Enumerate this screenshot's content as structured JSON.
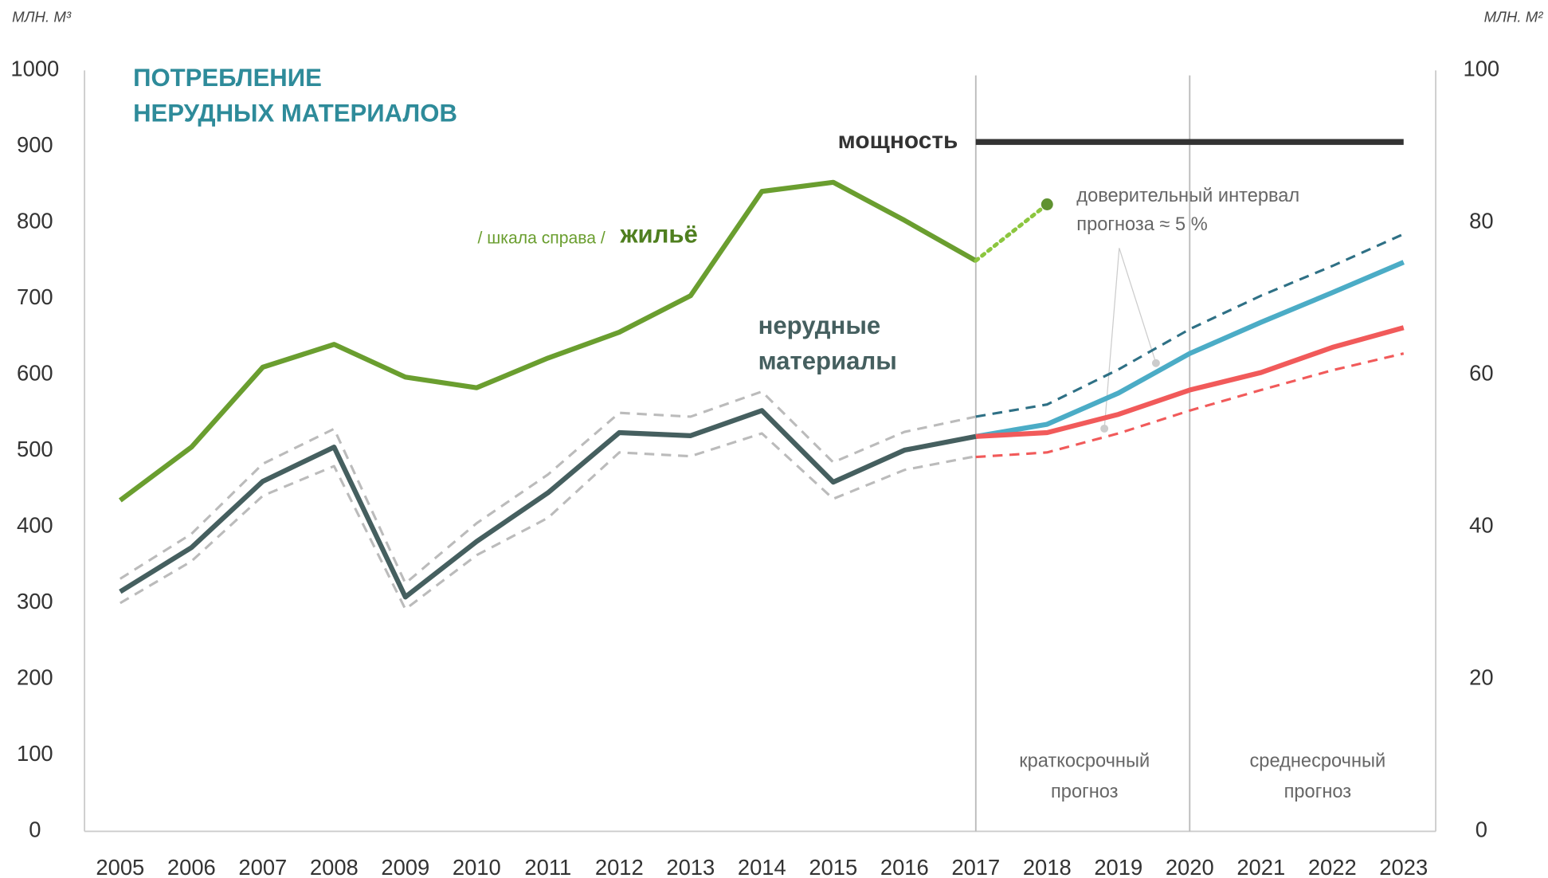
{
  "chart_data": {
    "type": "line",
    "title": [
      "ПОТРЕБЛЕНИЕ",
      "НЕРУДНЫХ МАТЕРИАЛОВ"
    ],
    "y_label": "МЛН. М³",
    "y2_label": "МЛН. М²",
    "x": [
      2005,
      2006,
      2007,
      2008,
      2009,
      2010,
      2011,
      2012,
      2013,
      2014,
      2015,
      2016,
      2017,
      2018,
      2019,
      2020,
      2021,
      2022,
      2023
    ],
    "xlim": [
      2004.5,
      2023.45
    ],
    "ylim": [
      0,
      1000
    ],
    "yticks": [
      0,
      100,
      200,
      300,
      400,
      500,
      600,
      700,
      800,
      900,
      1000
    ],
    "y2lim": [
      0,
      100
    ],
    "y2ticks": [
      0,
      20,
      40,
      60,
      80,
      100
    ],
    "vlines": [
      2017,
      2020
    ],
    "series": [
      {
        "color": "#bbbbbb",
        "style": "dashed",
        "values": [
          332,
          391,
          483,
          529,
          326,
          405,
          469,
          550,
          545,
          578,
          485,
          525,
          545,
          null,
          null,
          null,
          null,
          null,
          null
        ]
      },
      {
        "color": "#bbbbbb",
        "style": "dashed",
        "values": [
          300,
          355,
          441,
          480,
          292,
          363,
          412,
          498,
          493,
          523,
          437,
          475,
          493,
          null,
          null,
          null,
          null,
          null,
          null
        ]
      },
      {
        "color": "#2e7085",
        "style": "dashed",
        "values": [
          null,
          null,
          null,
          null,
          null,
          null,
          null,
          null,
          null,
          null,
          null,
          null,
          545,
          561,
          607,
          660,
          704,
          743,
          785
        ]
      },
      {
        "color": "#f15a5a",
        "style": "dashed",
        "values": [
          null,
          null,
          null,
          null,
          null,
          null,
          null,
          null,
          null,
          null,
          null,
          null,
          492,
          498,
          523,
          553,
          580,
          606,
          628
        ]
      },
      {
        "color": "#4bacc6",
        "style": "solid",
        "values": [
          null,
          null,
          null,
          null,
          null,
          null,
          null,
          null,
          null,
          null,
          null,
          null,
          519,
          535,
          576,
          628,
          669,
          708,
          748
        ]
      },
      {
        "color": "#f15a5a",
        "style": "solid",
        "values": [
          null,
          null,
          null,
          null,
          null,
          null,
          null,
          null,
          null,
          null,
          null,
          null,
          519,
          524,
          548,
          580,
          603,
          636,
          662
        ]
      },
      {
        "name": "нерудные материалы",
        "color": "#455f5f",
        "style": "solid",
        "values": [
          315,
          373,
          460,
          505,
          308,
          381,
          445,
          524,
          520,
          553,
          459,
          501,
          519,
          null,
          null,
          null,
          null,
          null,
          null
        ]
      },
      {
        "name": "жильё",
        "color": "#6a9e2f",
        "style": "solid",
        "axis": "y2",
        "values": [
          43.5,
          50.5,
          61,
          64,
          59.7,
          58.3,
          62.2,
          65.6,
          70.4,
          84.1,
          85.3,
          80.3,
          75,
          null,
          null,
          null,
          null,
          null,
          null
        ]
      },
      {
        "color": "#8cc63f",
        "style": "dotted",
        "axis": "y2",
        "values": [
          null,
          null,
          null,
          null,
          null,
          null,
          null,
          null,
          null,
          null,
          null,
          null,
          75,
          82.4,
          null,
          null,
          null,
          null,
          null
        ]
      },
      {
        "name": "мощность",
        "color": "#333333",
        "style": "solid",
        "values": [
          null,
          null,
          null,
          null,
          null,
          null,
          null,
          null,
          null,
          null,
          null,
          null,
          906,
          906,
          906,
          906,
          906,
          906,
          906
        ]
      }
    ],
    "annotations": {
      "scale_note": "/ шкала справа /",
      "ci": [
        "доверительный интервал",
        "прогноза ≈ 5 %"
      ],
      "short": [
        "краткосрочный",
        "прогноз"
      ],
      "medium": [
        "среднесрочный",
        "прогноз"
      ]
    }
  }
}
